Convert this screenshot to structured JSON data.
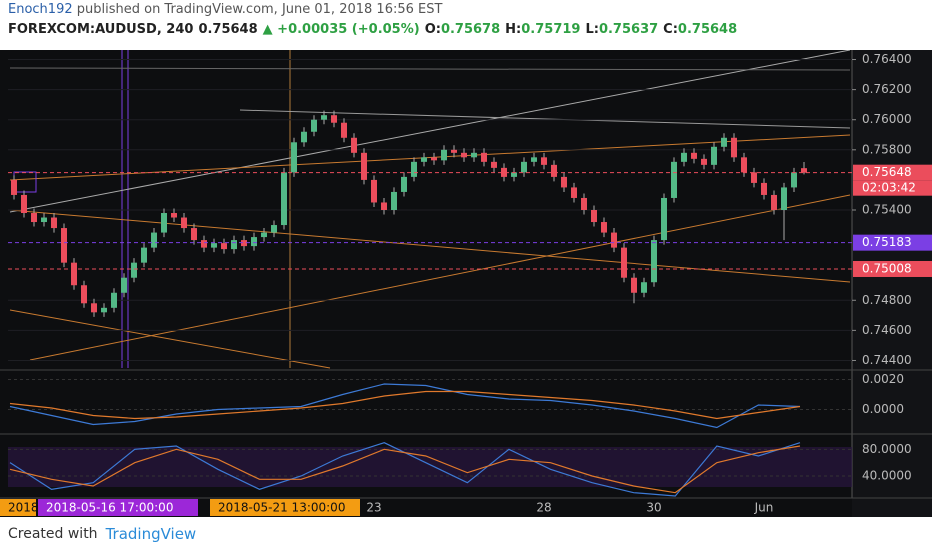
{
  "header": {
    "author": "Enoch192",
    "published": "published on TradingView.com, June 01, 2018 16:56 EST",
    "symbol": "FOREXCOM:AUDUSD, 240",
    "last": "0.75648",
    "change": "▲ +0.00035 (+0.05%)",
    "o_label": "O:",
    "o": "0.75678",
    "h_label": "H:",
    "h": "0.75719",
    "l_label": "L:",
    "l": "0.75637",
    "c_label": "C:",
    "c": "0.75648"
  },
  "footer": {
    "created": "Created with",
    "brand": "TradingView"
  },
  "chart_data": {
    "type": "candlestick",
    "up_color": "#53b987",
    "down_color": "#eb4d5c",
    "categories": [
      null,
      null,
      null,
      null,
      null,
      null,
      null,
      null,
      null,
      null,
      null,
      null,
      null,
      null,
      null,
      null,
      null,
      null,
      null,
      null,
      null,
      null,
      null,
      null,
      null,
      null,
      null,
      null,
      null,
      null,
      null,
      null,
      null,
      null,
      null,
      null,
      "23",
      null,
      null,
      null,
      null,
      null,
      null,
      null,
      null,
      null,
      null,
      null,
      null,
      null,
      null,
      null,
      null,
      "28",
      null,
      null,
      null,
      null,
      null,
      null,
      null,
      null,
      null,
      null,
      "30",
      null,
      null,
      null,
      null,
      null,
      null,
      null,
      null,
      null,
      null,
      "Jun",
      null,
      null,
      null,
      null
    ],
    "open": [
      0.756,
      0.755,
      0.7538,
      0.7532,
      0.7535,
      0.7528,
      0.7505,
      0.749,
      0.7478,
      0.7472,
      0.7475,
      0.7485,
      0.7495,
      0.7505,
      0.7515,
      0.7525,
      0.7538,
      0.7535,
      0.7528,
      0.752,
      0.7515,
      0.7518,
      0.7514,
      0.752,
      0.7516,
      0.7522,
      0.7525,
      0.753,
      0.7565,
      0.7585,
      0.7592,
      0.76,
      0.7603,
      0.7598,
      0.7588,
      0.7578,
      0.756,
      0.7545,
      0.754,
      0.7552,
      0.7562,
      0.7572,
      0.7575,
      0.7573,
      0.758,
      0.7578,
      0.7575,
      0.7578,
      0.7572,
      0.7568,
      0.7562,
      0.7565,
      0.7572,
      0.7575,
      0.757,
      0.7562,
      0.7555,
      0.7548,
      0.754,
      0.7532,
      0.7525,
      0.7515,
      0.7495,
      0.7485,
      0.7492,
      0.752,
      0.7548,
      0.7572,
      0.7578,
      0.7574,
      0.757,
      0.7582,
      0.7588,
      0.7575,
      0.7565,
      0.7558,
      0.755,
      0.754,
      0.7555,
      0.75678
    ],
    "high": [
      0.7563,
      0.7553,
      0.7541,
      0.7538,
      0.7538,
      0.7531,
      0.7508,
      0.7493,
      0.7481,
      0.7478,
      0.7488,
      0.7498,
      0.7508,
      0.7518,
      0.7528,
      0.7541,
      0.7541,
      0.7538,
      0.7531,
      0.7523,
      0.7521,
      0.7521,
      0.7523,
      0.7523,
      0.7525,
      0.7528,
      0.7533,
      0.7568,
      0.7588,
      0.7595,
      0.7603,
      0.7606,
      0.7606,
      0.7601,
      0.7591,
      0.7581,
      0.7563,
      0.7548,
      0.7555,
      0.7565,
      0.7575,
      0.7578,
      0.7578,
      0.7583,
      0.7583,
      0.7581,
      0.7581,
      0.7581,
      0.7575,
      0.7571,
      0.7568,
      0.7575,
      0.7578,
      0.7578,
      0.7573,
      0.7565,
      0.7558,
      0.7551,
      0.7543,
      0.7535,
      0.7528,
      0.7518,
      0.7498,
      0.7495,
      0.7523,
      0.7551,
      0.7575,
      0.7581,
      0.7581,
      0.7577,
      0.7585,
      0.7591,
      0.7591,
      0.7578,
      0.7568,
      0.7561,
      0.7553,
      0.7558,
      0.7568,
      0.75719
    ],
    "low": [
      0.7547,
      0.7535,
      0.7529,
      0.7529,
      0.7525,
      0.7502,
      0.7487,
      0.7475,
      0.7469,
      0.7469,
      0.7472,
      0.7482,
      0.7492,
      0.7502,
      0.7512,
      0.7522,
      0.7532,
      0.7525,
      0.7517,
      0.7512,
      0.7512,
      0.7511,
      0.7511,
      0.7513,
      0.7513,
      0.7519,
      0.7522,
      0.7527,
      0.7562,
      0.7582,
      0.7589,
      0.7597,
      0.7595,
      0.7585,
      0.7575,
      0.7557,
      0.7542,
      0.7537,
      0.7537,
      0.7549,
      0.7559,
      0.7569,
      0.757,
      0.757,
      0.7575,
      0.7572,
      0.7572,
      0.7569,
      0.7565,
      0.7559,
      0.7559,
      0.7562,
      0.7569,
      0.7567,
      0.7559,
      0.7552,
      0.7545,
      0.7537,
      0.7529,
      0.7522,
      0.7512,
      0.7492,
      0.7478,
      0.7482,
      0.7489,
      0.7517,
      0.7545,
      0.7569,
      0.7571,
      0.7567,
      0.7567,
      0.7579,
      0.7572,
      0.7562,
      0.7555,
      0.7547,
      0.7537,
      0.752,
      0.7552,
      0.75637
    ],
    "close": [
      0.755,
      0.7538,
      0.7532,
      0.7535,
      0.7528,
      0.7505,
      0.749,
      0.7478,
      0.7472,
      0.7475,
      0.7485,
      0.7495,
      0.7505,
      0.7515,
      0.7525,
      0.7538,
      0.7535,
      0.7528,
      0.752,
      0.7515,
      0.7518,
      0.7514,
      0.752,
      0.7516,
      0.7522,
      0.7525,
      0.753,
      0.7565,
      0.7585,
      0.7592,
      0.76,
      0.7603,
      0.7598,
      0.7588,
      0.7578,
      0.756,
      0.7545,
      0.754,
      0.7552,
      0.7562,
      0.7572,
      0.7575,
      0.7573,
      0.758,
      0.7578,
      0.7575,
      0.7578,
      0.7572,
      0.7568,
      0.7562,
      0.7565,
      0.7572,
      0.7575,
      0.757,
      0.7562,
      0.7555,
      0.7548,
      0.754,
      0.7532,
      0.7525,
      0.7515,
      0.7495,
      0.7485,
      0.7492,
      0.752,
      0.7548,
      0.7572,
      0.7578,
      0.7574,
      0.757,
      0.7582,
      0.7588,
      0.7575,
      0.7565,
      0.7558,
      0.755,
      0.754,
      0.7555,
      0.7565,
      0.75648
    ],
    "ylim": [
      0.7435,
      0.7645
    ],
    "yticks": [
      {
        "value": 0.744,
        "label": "0.74400"
      },
      {
        "value": 0.746,
        "label": "0.74600"
      },
      {
        "value": 0.748,
        "label": "0.74800"
      },
      {
        "value": 0.754,
        "label": "0.75400"
      },
      {
        "value": 0.758,
        "label": "0.75800"
      },
      {
        "value": 0.76,
        "label": "0.76000"
      },
      {
        "value": 0.762,
        "label": "0.76200"
      },
      {
        "value": 0.764,
        "label": "0.76400"
      }
    ],
    "price_lines": [
      {
        "value": 0.75648,
        "label": "0.75648",
        "color": "#eb4d5c"
      },
      {
        "value": 0.75183,
        "label": "0.75183",
        "color": "#7b3fe4"
      },
      {
        "value": 0.75008,
        "label": "0.75008",
        "color": "#eb4d5c"
      }
    ],
    "countdown": "02:03:42",
    "time_labels": [
      "2018",
      "2018-05-16 17:00:00",
      "2018-05-21 13:00:00"
    ],
    "panels": [
      {
        "ylim": [
          -0.0015,
          0.0025
        ],
        "yticks": [
          {
            "value": 0.002,
            "label": "0.0020"
          },
          {
            "value": 0,
            "label": "0.0000"
          }
        ],
        "series": [
          {
            "color": "#3d7ad6",
            "values": [
              0.0002,
              -0.0004,
              -0.001,
              -0.0008,
              -0.0003,
              0.0,
              0.0001,
              0.0002,
              0.001,
              0.0017,
              0.0016,
              0.001,
              0.0007,
              0.0006,
              0.0003,
              -0.0001,
              -0.0006,
              -0.0012,
              0.0003,
              0.0002
            ]
          },
          {
            "color": "#e0792c",
            "values": [
              0.0004,
              0.0001,
              -0.0004,
              -0.0006,
              -0.0005,
              -0.0003,
              -0.0001,
              0.0001,
              0.0004,
              0.0009,
              0.0012,
              0.0012,
              0.001,
              0.0008,
              0.0006,
              0.0003,
              -0.0001,
              -0.0006,
              -0.0002,
              0.0002
            ]
          }
        ]
      },
      {
        "ylim": [
          10,
          100
        ],
        "yticks": [
          {
            "value": 80,
            "label": "80.0000"
          },
          {
            "value": 40,
            "label": "40.0000"
          }
        ],
        "series": [
          {
            "color": "#3d7ad6",
            "values": [
              60,
              20,
              30,
              80,
              85,
              50,
              20,
              40,
              70,
              90,
              60,
              30,
              80,
              50,
              30,
              15,
              10,
              85,
              70,
              90
            ]
          },
          {
            "color": "#e0792c",
            "values": [
              50,
              35,
              25,
              60,
              80,
              65,
              35,
              35,
              55,
              80,
              70,
              45,
              65,
              60,
              40,
              25,
              15,
              60,
              75,
              85
            ]
          }
        ]
      }
    ]
  }
}
